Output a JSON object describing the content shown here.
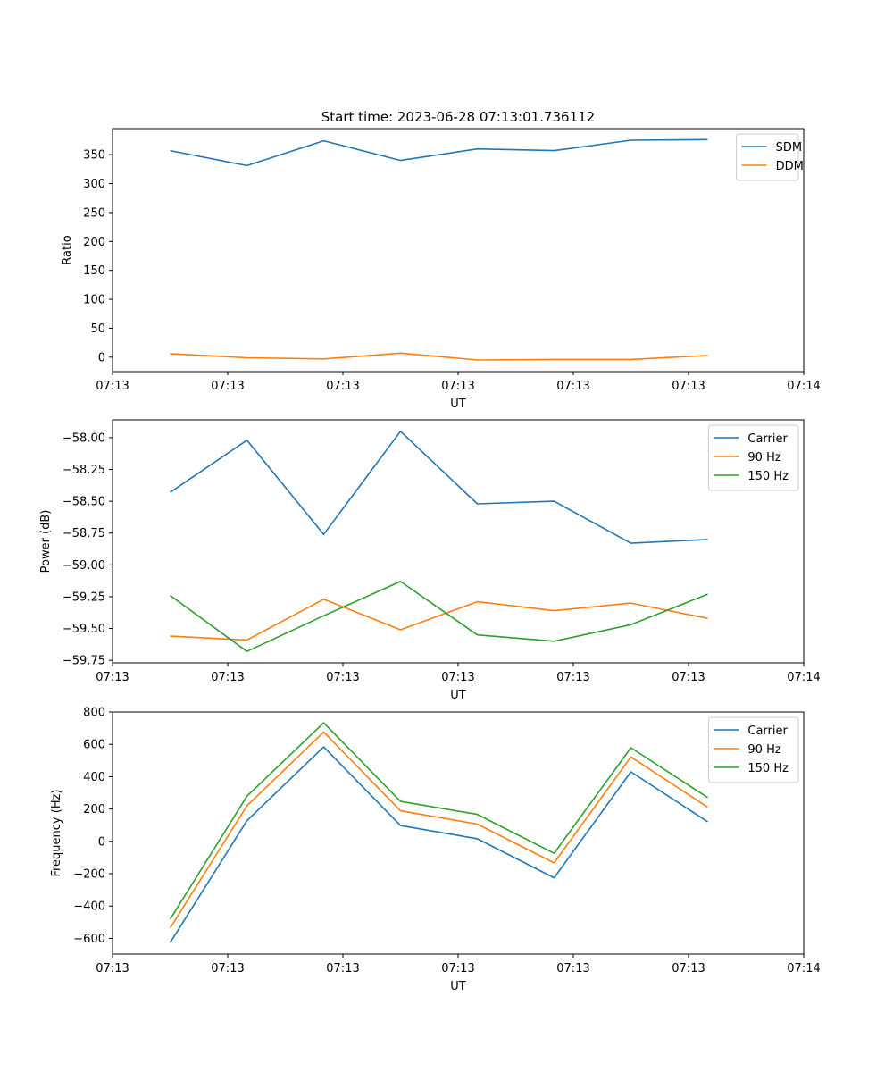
{
  "figure": {
    "title": "Start time: 2023-06-28 07:13:01.736112"
  },
  "chart_data": [
    {
      "type": "line",
      "title": "Start time: 2023-06-28 07:13:01.736112",
      "xlabel": "UT",
      "ylabel": "Ratio",
      "x_tick_labels": [
        "07:13",
        "07:13",
        "07:13",
        "07:13",
        "07:13",
        "07:13",
        "07:14"
      ],
      "xlim": [
        0,
        18
      ],
      "x_ticks": [
        0,
        3,
        6,
        9,
        12,
        15,
        18
      ],
      "x": [
        1.5,
        3.5,
        5.5,
        7.5,
        9.5,
        11.5,
        13.5,
        15.5
      ],
      "ylim": [
        -25,
        395
      ],
      "y_ticks": [
        0,
        50,
        100,
        150,
        200,
        250,
        300,
        350
      ],
      "y_tick_labels": [
        "0",
        "50",
        "100",
        "150",
        "200",
        "250",
        "300",
        "350"
      ],
      "legend_position": "top-right",
      "grid": false,
      "series": [
        {
          "name": "SDM",
          "color": "#1f77b4",
          "values": [
            357,
            331,
            374,
            340,
            360,
            357,
            375,
            376
          ]
        },
        {
          "name": "DDM",
          "color": "#ff7f0e",
          "values": [
            6,
            -1,
            -3,
            7,
            -5,
            -4,
            -4,
            3
          ]
        }
      ]
    },
    {
      "type": "line",
      "xlabel": "UT",
      "ylabel": "Power (dB)",
      "x_tick_labels": [
        "07:13",
        "07:13",
        "07:13",
        "07:13",
        "07:13",
        "07:13",
        "07:14"
      ],
      "xlim": [
        0,
        18
      ],
      "x_ticks": [
        0,
        3,
        6,
        9,
        12,
        15,
        18
      ],
      "x": [
        1.5,
        3.5,
        5.5,
        7.5,
        9.5,
        11.5,
        13.5,
        15.5
      ],
      "ylim": [
        -59.77,
        -57.86
      ],
      "y_ticks": [
        -58.0,
        -58.25,
        -58.5,
        -58.75,
        -59.0,
        -59.25,
        -59.5,
        -59.75
      ],
      "y_tick_labels": [
        "−58.00",
        "−58.25",
        "−58.50",
        "−58.75",
        "−59.00",
        "−59.25",
        "−59.50",
        "−59.75"
      ],
      "legend_position": "top-right",
      "grid": false,
      "series": [
        {
          "name": "Carrier",
          "color": "#1f77b4",
          "values": [
            -58.43,
            -58.02,
            -58.76,
            -57.95,
            -58.52,
            -58.5,
            -58.83,
            -58.8
          ]
        },
        {
          "name": "90 Hz",
          "color": "#ff7f0e",
          "values": [
            -59.56,
            -59.59,
            -59.27,
            -59.51,
            -59.29,
            -59.36,
            -59.3,
            -59.42
          ]
        },
        {
          "name": "150 Hz",
          "color": "#2ca02c",
          "values": [
            -59.24,
            -59.68,
            -59.4,
            -59.13,
            -59.55,
            -59.6,
            -59.47,
            -59.23
          ]
        }
      ]
    },
    {
      "type": "line",
      "xlabel": "UT",
      "ylabel": "Frequency (Hz)",
      "x_tick_labels": [
        "07:13",
        "07:13",
        "07:13",
        "07:13",
        "07:13",
        "07:13",
        "07:14"
      ],
      "xlim": [
        0,
        18
      ],
      "x_ticks": [
        0,
        3,
        6,
        9,
        12,
        15,
        18
      ],
      "x": [
        1.5,
        3.5,
        5.5,
        7.5,
        9.5,
        11.5,
        13.5,
        15.5
      ],
      "ylim": [
        -697,
        800
      ],
      "y_ticks": [
        800,
        600,
        400,
        200,
        0,
        -200,
        -400,
        -600
      ],
      "y_tick_labels": [
        "800",
        "600",
        "400",
        "200",
        "0",
        "−200",
        "−400",
        "−600"
      ],
      "legend_position": "top-right",
      "grid": false,
      "series": [
        {
          "name": "Carrier",
          "color": "#1f77b4",
          "values": [
            -627,
            128,
            584,
            98,
            16,
            -225,
            430,
            121
          ]
        },
        {
          "name": "90 Hz",
          "color": "#ff7f0e",
          "values": [
            -537,
            220,
            676,
            189,
            107,
            -133,
            522,
            211
          ]
        },
        {
          "name": "150 Hz",
          "color": "#2ca02c",
          "values": [
            -482,
            279,
            733,
            247,
            167,
            -74,
            579,
            271
          ]
        }
      ]
    }
  ]
}
